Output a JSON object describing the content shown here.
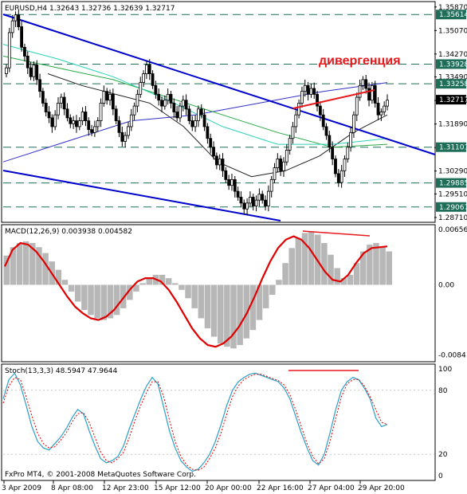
{
  "chart_data": [
    {
      "type": "candlestick",
      "header": "EURUSD,H4  1.32643  1.32736  1.32639  1.32717",
      "annotation": "дивергенция",
      "y_ticks": [
        1.3587,
        1.3507,
        1.3427,
        1.3349,
        1.3269,
        1.3189,
        1.3109,
        1.3029,
        1.2951,
        1.2871
      ],
      "y_tick_labels": [
        "1.35870",
        "1.35070",
        "1.34270",
        "1.33490",
        "1.32690",
        "1.31890",
        "1.31090",
        "1.30290",
        "1.29510",
        "1.28710"
      ],
      "ylim": [
        1.286,
        1.36
      ],
      "price_tags": [
        {
          "label": "1.35614",
          "value": 1.35614,
          "color": "#1e6e5a"
        },
        {
          "label": "1.33928",
          "value": 1.33928,
          "color": "#1e6e5a"
        },
        {
          "label": "1.33258",
          "value": 1.33258,
          "color": "#1e6e5a"
        },
        {
          "label": "1.32717",
          "value": 1.32717,
          "color": "#000000"
        },
        {
          "label": "1.31101",
          "value": 1.31101,
          "color": "#1e6e5a"
        },
        {
          "label": "1.29885",
          "value": 1.29885,
          "color": "#1e6e5a"
        },
        {
          "label": "1.29067",
          "value": 1.29067,
          "color": "#1e6e5a"
        }
      ],
      "close": [
        1.338,
        1.35,
        1.354,
        1.356,
        1.352,
        1.345,
        1.342,
        1.338,
        1.335,
        1.339,
        1.334,
        1.33,
        1.326,
        1.323,
        1.321,
        1.318,
        1.322,
        1.326,
        1.328,
        1.324,
        1.321,
        1.319,
        1.32,
        1.318,
        1.32,
        1.323,
        1.32,
        1.317,
        1.316,
        1.318,
        1.32,
        1.326,
        1.33,
        1.327,
        1.329,
        1.324,
        1.32,
        1.316,
        1.313,
        1.315,
        1.318,
        1.322,
        1.325,
        1.329,
        1.333,
        1.336,
        1.339,
        1.336,
        1.332,
        1.329,
        1.327,
        1.325,
        1.327,
        1.329,
        1.326,
        1.323,
        1.321,
        1.325,
        1.327,
        1.324,
        1.32,
        1.318,
        1.32,
        1.324,
        1.322,
        1.318,
        1.314,
        1.311,
        1.308,
        1.305,
        1.307,
        1.303,
        1.3,
        1.298,
        1.3,
        1.296,
        1.294,
        1.292,
        1.29,
        1.292,
        1.294,
        1.291,
        1.293,
        1.295,
        1.293,
        1.291,
        1.296,
        1.3,
        1.304,
        1.307,
        1.303,
        1.306,
        1.31,
        1.314,
        1.318,
        1.322,
        1.326,
        1.33,
        1.332,
        1.329,
        1.331,
        1.329,
        1.325,
        1.322,
        1.318,
        1.315,
        1.311,
        1.307,
        1.302,
        1.299,
        1.303,
        1.307,
        1.311,
        1.316,
        1.322,
        1.328,
        1.332,
        1.334,
        1.331,
        1.327,
        1.332,
        1.326,
        1.322,
        1.323,
        1.325,
        1.327
      ],
      "candle_tags": {
        "wick": "black",
        "body": "black-hollow"
      },
      "moving_averages": {
        "blue": [
          1.306,
          1.313,
          1.32,
          1.322,
          1.326,
          1.33,
          1.333
        ],
        "black": [
          1.336,
          1.332,
          1.329,
          1.326,
          1.318,
          1.306,
          1.301,
          1.303,
          1.308,
          1.316,
          1.322
        ],
        "green": [
          1.342,
          1.338,
          1.334,
          1.328,
          1.322,
          1.316,
          1.311,
          1.312
        ],
        "teal": [
          1.346,
          1.341,
          1.335,
          1.327,
          1.318,
          1.312,
          1.312,
          1.314
        ]
      },
      "channel_lines": [
        {
          "name": "upper",
          "color": "#0000cc"
        },
        {
          "name": "lower",
          "color": "#0000cc"
        }
      ]
    },
    {
      "type": "bar",
      "title": "MACD(12,26,9) 0.003938 0.004582",
      "y_tick_labels": [
        "0.00656",
        "0.00",
        "-0.00841"
      ],
      "ylim": [
        -0.009,
        0.007
      ],
      "histogram": [
        0.0035,
        0.0045,
        0.005,
        0.0052,
        0.005,
        0.0045,
        0.0038,
        0.0028,
        0.0018,
        0.0006,
        -0.0008,
        -0.002,
        -0.003,
        -0.0036,
        -0.004,
        -0.0042,
        -0.004,
        -0.0036,
        -0.0028,
        -0.0018,
        -0.0008,
        0.0002,
        0.0008,
        0.0012,
        0.0012,
        0.0008,
        0.0002,
        -0.0006,
        -0.0016,
        -0.0028,
        -0.004,
        -0.0052,
        -0.0062,
        -0.007,
        -0.0074,
        -0.0076,
        -0.0072,
        -0.0064,
        -0.0054,
        -0.0042,
        -0.0028,
        -0.0012,
        0.0006,
        0.0026,
        0.0044,
        0.0056,
        0.0062,
        0.0064,
        0.006,
        0.005,
        0.0036,
        0.002,
        0.0008,
        0.0012,
        0.0026,
        0.004,
        0.0048,
        0.005,
        0.0046,
        0.004
      ],
      "signal": [
        0.0022,
        0.0042,
        0.005,
        0.0048,
        0.004,
        0.0028,
        0.0014,
        0.0,
        -0.0014,
        -0.0026,
        -0.0034,
        -0.004,
        -0.0042,
        -0.0038,
        -0.003,
        -0.0018,
        -0.0006,
        0.0004,
        0.0008,
        0.0008,
        0.0004,
        -0.0006,
        -0.002,
        -0.0036,
        -0.0052,
        -0.0064,
        -0.0072,
        -0.0074,
        -0.007,
        -0.0062,
        -0.005,
        -0.0034,
        -0.0014,
        0.0008,
        0.0028,
        0.0044,
        0.0054,
        0.0058,
        0.0054,
        0.0044,
        0.003,
        0.0016,
        0.0006,
        0.0004,
        0.0012,
        0.0026,
        0.0038,
        0.0044,
        0.0045,
        0.0046
      ],
      "divergence_line": [
        0.0064,
        0.0056
      ]
    },
    {
      "type": "line",
      "title": "Stoch(13,3,3) 48.5947 47.9644",
      "y_tick_labels": [
        "100",
        "80",
        "20",
        "0"
      ],
      "ylim": [
        0,
        100
      ],
      "main": [
        72,
        90,
        96,
        85,
        66,
        46,
        32,
        26,
        24,
        30,
        36,
        44,
        54,
        62,
        58,
        42,
        28,
        16,
        12,
        14,
        18,
        28,
        44,
        58,
        72,
        84,
        92,
        86,
        64,
        42,
        26,
        14,
        8,
        4,
        6,
        12,
        20,
        32,
        48,
        66,
        80,
        88,
        92,
        95,
        96,
        94,
        92,
        90,
        88,
        82,
        72,
        56,
        40,
        26,
        14,
        10,
        20,
        40,
        62,
        80,
        88,
        92,
        90,
        82,
        72,
        54,
        46,
        48
      ],
      "signal": [
        68,
        84,
        92,
        90,
        74,
        56,
        40,
        30,
        26,
        27,
        33,
        40,
        50,
        58,
        59,
        50,
        36,
        22,
        14,
        12,
        16,
        22,
        36,
        52,
        66,
        78,
        88,
        88,
        74,
        52,
        32,
        18,
        10,
        6,
        5,
        8,
        16,
        26,
        40,
        58,
        74,
        84,
        90,
        93,
        95,
        95,
        93,
        91,
        89,
        85,
        76,
        62,
        46,
        30,
        18,
        11,
        16,
        32,
        54,
        74,
        86,
        90,
        90,
        84,
        74,
        62,
        50,
        48
      ],
      "divergence_line": [
        96,
        96
      ]
    }
  ],
  "x_labels": [
    "3 Apr 2009",
    "8 Apr 08:00",
    "12 Apr 23:00",
    "15 Apr 12:00",
    "20 Apr 00:00",
    "22 Apr 16:00",
    "27 Apr 04:00",
    "29 Apr 20:00"
  ],
  "copyright": "FxPro MT4, © 2001-2008 MetaQuotes Software Corp."
}
